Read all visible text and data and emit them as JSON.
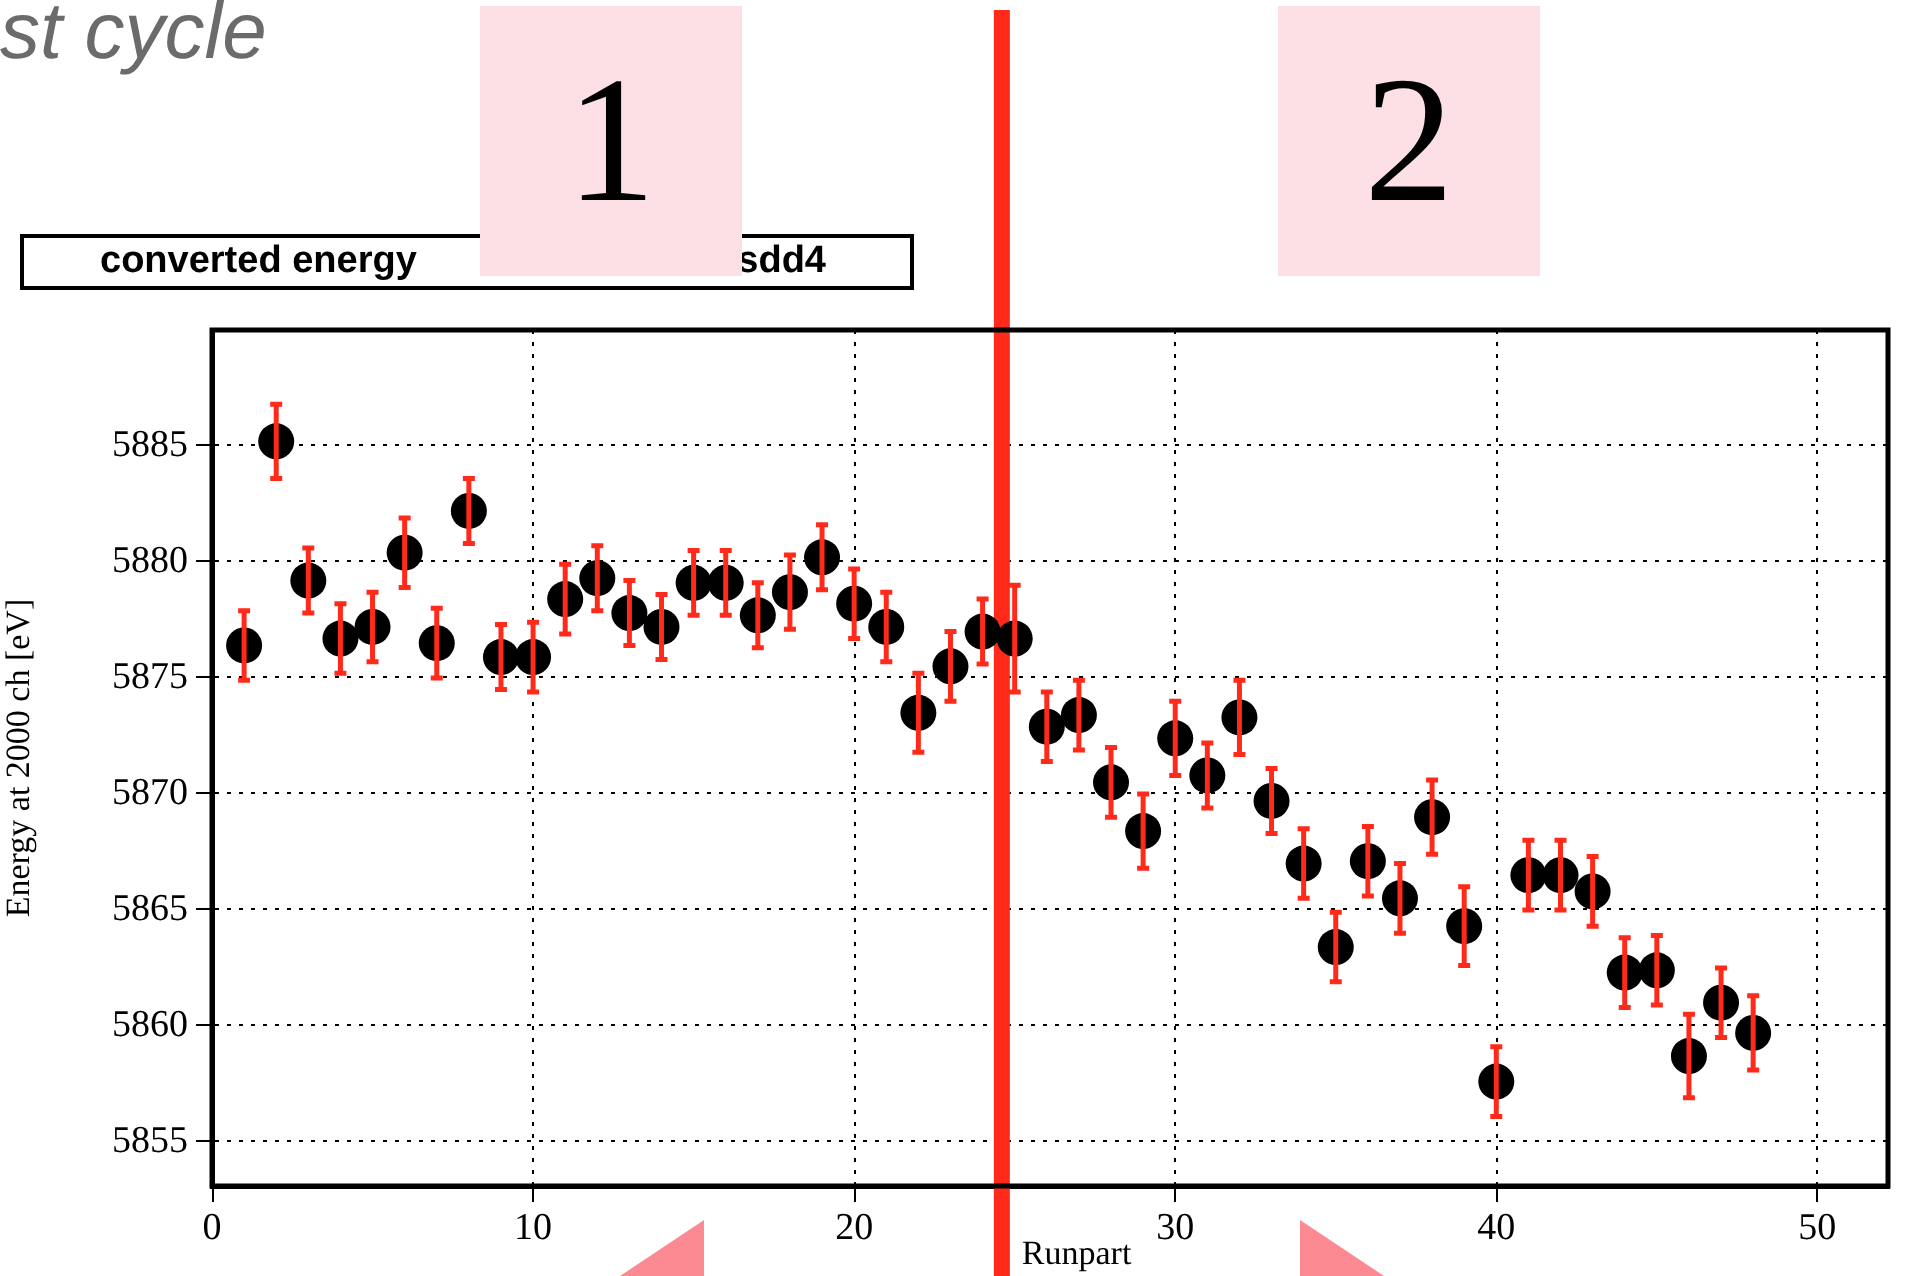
{
  "chart_data": {
    "type": "scatter",
    "title": "converted energy",
    "subtitle": "sdd4",
    "xlabel": "Runpart",
    "ylabel": "Energy at 2000 ch [eV]",
    "x": [
      1,
      2,
      3,
      4,
      5,
      6,
      7,
      8,
      9,
      10,
      11,
      12,
      13,
      14,
      15,
      16,
      17,
      18,
      19,
      20,
      21,
      22,
      23,
      24,
      25,
      26,
      27,
      28,
      29,
      30,
      31,
      32,
      33,
      34,
      35,
      36,
      37,
      38,
      39,
      40,
      41,
      42,
      43,
      44,
      45,
      46,
      47,
      48
    ],
    "series": [
      {
        "color": "#000000",
        "values": [
          5876.4,
          5885.2,
          5879.2,
          5876.7,
          5877.2,
          5880.4,
          5876.5,
          5882.2,
          5875.9,
          5875.9,
          5878.4,
          5879.3,
          5877.8,
          5877.2,
          5879.1,
          5879.1,
          5877.7,
          5878.7,
          5880.2,
          5878.2,
          5877.2,
          5873.5,
          5875.5,
          5877.0,
          5876.7,
          5872.9,
          5873.4,
          5870.5,
          5868.4,
          5872.4,
          5870.8,
          5873.3,
          5869.7,
          5867.0,
          5863.4,
          5867.1,
          5865.5,
          5869.0,
          5864.3,
          5857.6,
          5866.5,
          5866.5,
          5865.8,
          5862.3,
          5862.4,
          5858.7,
          5861.0,
          5859.7
        ],
        "errors": [
          1.5,
          1.6,
          1.4,
          1.5,
          1.5,
          1.5,
          1.5,
          1.4,
          1.4,
          1.5,
          1.5,
          1.4,
          1.4,
          1.4,
          1.4,
          1.4,
          1.4,
          1.6,
          1.4,
          1.5,
          1.5,
          1.7,
          1.5,
          1.4,
          2.3,
          1.5,
          1.5,
          1.5,
          1.6,
          1.6,
          1.4,
          1.6,
          1.4,
          1.5,
          1.5,
          1.5,
          1.5,
          1.6,
          1.7,
          1.5,
          1.5,
          1.5,
          1.5,
          1.5,
          1.5,
          1.8,
          1.5,
          1.6
        ]
      }
    ],
    "xlim": [
      0,
      52.2
    ],
    "ylim": [
      5853.1,
      5890
    ],
    "xticks": [
      0,
      10,
      20,
      30,
      40,
      50
    ],
    "yticks": [
      5855,
      5860,
      5865,
      5870,
      5875,
      5880,
      5885
    ],
    "grid": true,
    "legend": false,
    "marker": "circle",
    "ref_lines": [
      {
        "axis": "x",
        "value": 24.6,
        "color": "#ff2a1a"
      }
    ],
    "annotations": [
      "st cycle",
      "1",
      "2"
    ]
  }
}
